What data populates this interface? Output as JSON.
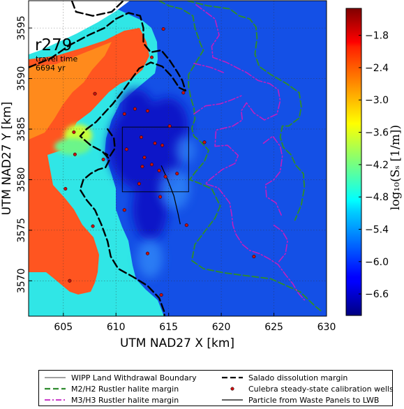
{
  "chart_data": {
    "type": "heatmap",
    "title": "",
    "annotation": {
      "realization": "r279",
      "travel_time_label": "travel time",
      "travel_time_value": "6694 yr"
    },
    "xlabel": "UTM NAD27 X [km]",
    "ylabel": "UTM NAD27 Y [km]",
    "xlim": [
      601.7,
      630.0
    ],
    "ylim": [
      3566.5,
      3597.7
    ],
    "x_ticks": [
      605,
      610,
      615,
      620,
      625,
      630
    ],
    "y_ticks": [
      3570,
      3575,
      3580,
      3585,
      3590,
      3595
    ],
    "grid": true,
    "colorbar": {
      "label": "log₁₀(Sₛ [1/m])",
      "range": [
        -7.0,
        -1.3
      ],
      "ticks": [
        -1.8,
        -2.4,
        -3.0,
        -3.6,
        -4.2,
        -4.8,
        -5.4,
        -6.0,
        -6.6
      ],
      "ticklabels": [
        "−1.8",
        "−2.4",
        "−3.0",
        "−3.6",
        "−4.2",
        "−4.8",
        "−5.4",
        "−6.0",
        "−6.6"
      ],
      "colormap": "jet"
    },
    "wipp_boundary": {
      "x0": 610.6,
      "x1": 616.9,
      "y0": 3578.8,
      "y1": 3585.2
    },
    "wells": [
      [
        608.0,
        3588.5
      ],
      [
        610.8,
        3586.5
      ],
      [
        606.0,
        3584.7
      ],
      [
        606.1,
        3582.5
      ],
      [
        608.8,
        3582.0
      ],
      [
        605.2,
        3579.1
      ],
      [
        607.8,
        3575.4
      ],
      [
        611.8,
        3587.0
      ],
      [
        613.0,
        3586.8
      ],
      [
        613.4,
        3592.1
      ],
      [
        614.5,
        3594.9
      ],
      [
        616.4,
        3588.6
      ],
      [
        612.4,
        3584.2
      ],
      [
        613.7,
        3583.6
      ],
      [
        611.0,
        3583.0
      ],
      [
        612.7,
        3582.2
      ],
      [
        612.5,
        3581.3
      ],
      [
        613.4,
        3581.5
      ],
      [
        614.1,
        3580.9
      ],
      [
        614.7,
        3580.3
      ],
      [
        615.8,
        3580.6
      ],
      [
        614.2,
        3578.3
      ],
      [
        612.2,
        3579.6
      ],
      [
        614.4,
        3583.4
      ],
      [
        615.1,
        3585.3
      ],
      [
        618.4,
        3583.7
      ],
      [
        610.8,
        3577.0
      ],
      [
        616.7,
        3575.5
      ],
      [
        613.0,
        3572.7
      ],
      [
        623.1,
        3572.4
      ],
      [
        614.3,
        3568.6
      ],
      [
        605.6,
        3570.0
      ]
    ],
    "particle_path": [
      [
        614.3,
        3581.4
      ],
      [
        614.9,
        3580.0
      ],
      [
        615.5,
        3578.4
      ],
      [
        615.9,
        3576.6
      ],
      [
        616.1,
        3575.6
      ]
    ],
    "salado_margin": [
      [
        [
          605.8,
          3597.7
        ],
        [
          606.2,
          3596.6
        ],
        [
          607.8,
          3596.2
        ],
        [
          609.6,
          3596.6
        ],
        [
          610.7,
          3597.7
        ]
      ],
      [
        [
          601.7,
          3591.1
        ],
        [
          603.8,
          3592.0
        ],
        [
          605.6,
          3593.3
        ],
        [
          607.4,
          3594.3
        ],
        [
          608.9,
          3595.0
        ],
        [
          610.0,
          3595.9
        ],
        [
          611.2,
          3596.5
        ],
        [
          612.3,
          3596.2
        ],
        [
          612.6,
          3595.0
        ],
        [
          612.6,
          3593.5
        ],
        [
          613.3,
          3592.6
        ],
        [
          614.3,
          3592.8
        ],
        [
          615.1,
          3591.8
        ],
        [
          615.8,
          3590.7
        ],
        [
          616.3,
          3589.8
        ],
        [
          616.6,
          3588.8
        ],
        [
          616.0,
          3589.1
        ],
        [
          615.3,
          3590.2
        ],
        [
          614.4,
          3591.2
        ],
        [
          613.3,
          3591.6
        ],
        [
          612.2,
          3591.0
        ],
        [
          611.5,
          3590.0
        ],
        [
          610.6,
          3588.7
        ],
        [
          609.7,
          3587.5
        ],
        [
          608.9,
          3586.6
        ],
        [
          608.1,
          3585.7
        ],
        [
          607.2,
          3585.0
        ],
        [
          606.6,
          3584.3
        ],
        [
          607.6,
          3583.4
        ],
        [
          608.7,
          3582.8
        ],
        [
          609.4,
          3582.0
        ],
        [
          609.0,
          3581.2
        ],
        [
          608.3,
          3581.0
        ],
        [
          607.6,
          3580.6
        ],
        [
          606.9,
          3580.0
        ],
        [
          606.6,
          3579.0
        ],
        [
          607.2,
          3578.0
        ],
        [
          608.0,
          3577.0
        ],
        [
          608.6,
          3575.6
        ],
        [
          609.2,
          3573.9
        ],
        [
          609.5,
          3572.4
        ],
        [
          610.2,
          3571.2
        ],
        [
          611.6,
          3570.4
        ],
        [
          613.0,
          3569.5
        ],
        [
          614.1,
          3568.3
        ],
        [
          614.6,
          3566.9
        ],
        [
          614.6,
          3566.5
        ]
      ],
      [
        [
          609.2,
          3585.0
        ],
        [
          609.8,
          3584.1
        ],
        [
          609.9,
          3583.1
        ],
        [
          609.4,
          3582.3
        ],
        [
          609.0,
          3582.6
        ]
      ]
    ],
    "m2h2_margin": [
      [
        [
          614.1,
          3597.7
        ],
        [
          615.0,
          3597.2
        ],
        [
          616.2,
          3596.9
        ],
        [
          617.3,
          3596.2
        ],
        [
          617.5,
          3595.0
        ],
        [
          618.0,
          3593.5
        ],
        [
          618.3,
          3592.8
        ],
        [
          617.6,
          3591.6
        ],
        [
          616.9,
          3590.4
        ],
        [
          616.9,
          3589.2
        ],
        [
          617.1,
          3588.1
        ],
        [
          617.4,
          3587.1
        ],
        [
          617.5,
          3586.0
        ],
        [
          617.2,
          3585.1
        ],
        [
          617.4,
          3584.3
        ],
        [
          618.1,
          3583.7
        ],
        [
          618.8,
          3582.9
        ],
        [
          618.4,
          3581.8
        ],
        [
          617.5,
          3580.7
        ],
        [
          617.0,
          3580.0
        ],
        [
          617.8,
          3579.7
        ],
        [
          619.1,
          3579.1
        ],
        [
          619.9,
          3577.4
        ],
        [
          619.4,
          3576.2
        ],
        [
          618.3,
          3574.7
        ],
        [
          617.5,
          3573.6
        ],
        [
          617.2,
          3572.0
        ],
        [
          618.3,
          3571.2
        ],
        [
          620.2,
          3570.8
        ],
        [
          622.4,
          3570.5
        ],
        [
          624.7,
          3570.2
        ],
        [
          626.0,
          3569.6
        ],
        [
          627.5,
          3568.9
        ],
        [
          628.9,
          3567.5
        ],
        [
          629.5,
          3567.0
        ]
      ],
      [
        [
          616.8,
          3597.7
        ],
        [
          618.7,
          3597.2
        ],
        [
          620.8,
          3596.9
        ],
        [
          621.7,
          3596.2
        ],
        [
          622.7,
          3595.9
        ],
        [
          623.3,
          3595.1
        ],
        [
          623.4,
          3594.0
        ],
        [
          623.2,
          3592.4
        ],
        [
          623.6,
          3591.2
        ],
        [
          624.7,
          3590.4
        ],
        [
          626.2,
          3589.5
        ],
        [
          627.4,
          3588.6
        ],
        [
          627.6,
          3587.2
        ],
        [
          627.4,
          3586.1
        ],
        [
          626.4,
          3585.3
        ],
        [
          625.8,
          3585.3
        ],
        [
          625.6,
          3584.2
        ],
        [
          625.9,
          3583.2
        ],
        [
          626.6,
          3582.5
        ],
        [
          627.1,
          3581.4
        ],
        [
          627.8,
          3580.6
        ],
        [
          627.9,
          3579.2
        ],
        [
          627.6,
          3577.5
        ],
        [
          627.0,
          3576.0
        ]
      ]
    ],
    "m3h3_margin": [
      [
        [
          617.6,
          3597.3
        ],
        [
          619.4,
          3595.9
        ],
        [
          619.8,
          3594.3
        ],
        [
          619.1,
          3593.2
        ],
        [
          619.2,
          3592.1
        ],
        [
          620.5,
          3591.6
        ],
        [
          621.8,
          3590.9
        ],
        [
          622.4,
          3590.6
        ],
        [
          623.5,
          3589.8
        ],
        [
          624.6,
          3589.5
        ],
        [
          625.4,
          3588.9
        ],
        [
          625.6,
          3587.8
        ],
        [
          625.3,
          3586.5
        ],
        [
          624.1,
          3585.9
        ],
        [
          623.1,
          3586.6
        ],
        [
          622.4,
          3587.6
        ],
        [
          621.9,
          3586.8
        ],
        [
          622.0,
          3585.9
        ],
        [
          621.1,
          3585.3
        ],
        [
          619.5,
          3584.9
        ],
        [
          619.4,
          3583.3
        ],
        [
          620.6,
          3583.4
        ],
        [
          621.6,
          3582.4
        ],
        [
          621.3,
          3581.6
        ],
        [
          620.1,
          3581.0
        ],
        [
          619.0,
          3580.1
        ],
        [
          618.5,
          3579.6
        ],
        [
          619.7,
          3579.2
        ],
        [
          620.8,
          3577.7
        ],
        [
          621.0,
          3576.5
        ],
        [
          621.1,
          3575.5
        ],
        [
          621.4,
          3574.6
        ],
        [
          622.0,
          3573.6
        ],
        [
          622.7,
          3573.0
        ],
        [
          623.6,
          3572.7
        ],
        [
          624.5,
          3572.2
        ],
        [
          625.4,
          3571.6
        ],
        [
          626.1,
          3570.6
        ],
        [
          626.8,
          3569.7
        ],
        [
          627.3,
          3568.8
        ],
        [
          627.9,
          3568.1
        ]
      ],
      [
        [
          617.4,
          3591.5
        ],
        [
          619.0,
          3591.1
        ],
        [
          620.2,
          3590.6
        ]
      ],
      [
        [
          617.4,
          3586.5
        ],
        [
          618.5,
          3587.3
        ],
        [
          619.9,
          3587.5
        ],
        [
          621.0,
          3587.9
        ],
        [
          621.9,
          3588.3
        ]
      ],
      [
        [
          624.0,
          3583.6
        ],
        [
          624.9,
          3584.3
        ],
        [
          625.6,
          3583.3
        ],
        [
          625.8,
          3582.3
        ],
        [
          625.6,
          3580.8
        ],
        [
          625.0,
          3580.0
        ],
        [
          624.2,
          3579.5
        ],
        [
          624.3,
          3578.3
        ],
        [
          625.2,
          3577.7
        ],
        [
          625.7,
          3576.5
        ]
      ],
      [
        [
          625.0,
          3575.5
        ],
        [
          625.8,
          3574.9
        ],
        [
          626.3,
          3574.0
        ],
        [
          626.1,
          3572.7
        ],
        [
          625.4,
          3571.8
        ]
      ]
    ],
    "legend": [
      "WIPP Land Withdrawal Boundary",
      "Salado dissolution margin",
      "M2/H2 Rustler halite margin",
      "Culebra steady-state calibration wells",
      "M3/H3 Rustler halite margin",
      "Particle from Waste Panels to LWB"
    ],
    "colors": {
      "salado": "#000000",
      "m2h2": "#2e8b2e",
      "m3h3": "#c01fc0",
      "well": "#c81010",
      "boundary": "#000000"
    }
  }
}
